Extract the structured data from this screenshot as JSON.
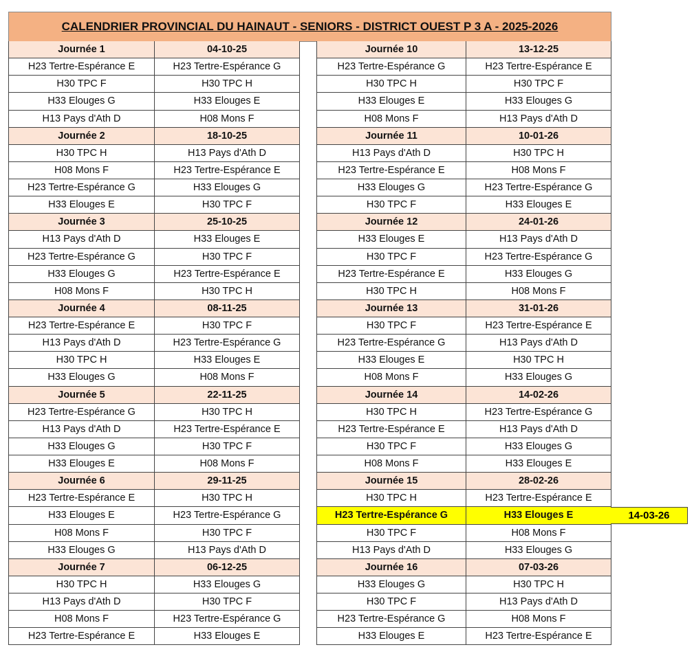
{
  "title": "CALENDRIER PROVINCIAL DU HAINAUT - SENIORS - DISTRICT OUEST P 3 A  - 2025-2026",
  "colors": {
    "title_bg": "#f4b183",
    "header_bg": "#fce4d6",
    "highlight": "#ffff00"
  },
  "left": [
    {
      "label": "Journée 1",
      "date": "04-10-25",
      "matches": [
        [
          "H23 Tertre-Espérance E",
          "H23 Tertre-Espérance G"
        ],
        [
          "H30 TPC F",
          "H30 TPC H"
        ],
        [
          "H33 Elouges G",
          "H33 Elouges E"
        ],
        [
          "H13 Pays d'Ath D",
          "H08 Mons F"
        ]
      ]
    },
    {
      "label": "Journée 2",
      "date": "18-10-25",
      "matches": [
        [
          "H30 TPC H",
          "H13 Pays d'Ath D"
        ],
        [
          "H08 Mons F",
          "H23 Tertre-Espérance E"
        ],
        [
          "H23 Tertre-Espérance G",
          "H33 Elouges G"
        ],
        [
          "H33 Elouges E",
          "H30 TPC F"
        ]
      ]
    },
    {
      "label": "Journée 3",
      "date": "25-10-25",
      "matches": [
        [
          "H13 Pays d'Ath D",
          "H33 Elouges E"
        ],
        [
          "H23 Tertre-Espérance G",
          "H30 TPC F"
        ],
        [
          "H33 Elouges G",
          "H23 Tertre-Espérance E"
        ],
        [
          "H08 Mons F",
          "H30 TPC H"
        ]
      ]
    },
    {
      "label": "Journée 4",
      "date": "08-11-25",
      "matches": [
        [
          "H23 Tertre-Espérance E",
          "H30 TPC F"
        ],
        [
          "H13 Pays d'Ath D",
          "H23 Tertre-Espérance G"
        ],
        [
          "H30 TPC H",
          "H33 Elouges E"
        ],
        [
          "H33 Elouges G",
          "H08 Mons F"
        ]
      ]
    },
    {
      "label": "Journée 5",
      "date": "22-11-25",
      "matches": [
        [
          "H23 Tertre-Espérance G",
          "H30 TPC H"
        ],
        [
          "H13 Pays d'Ath D",
          "H23 Tertre-Espérance E"
        ],
        [
          "H33 Elouges G",
          "H30 TPC F"
        ],
        [
          "H33 Elouges E",
          "H08 Mons F"
        ]
      ]
    },
    {
      "label": "Journée 6",
      "date": "29-11-25",
      "matches": [
        [
          "H23 Tertre-Espérance E",
          "H30 TPC H"
        ],
        [
          "H33 Elouges E",
          "H23 Tertre-Espérance G"
        ],
        [
          "H08 Mons F",
          "H30 TPC F"
        ],
        [
          "H33 Elouges G",
          "H13 Pays d'Ath D"
        ]
      ]
    },
    {
      "label": "Journée 7",
      "date": "06-12-25",
      "matches": [
        [
          "H30 TPC H",
          "H33 Elouges G"
        ],
        [
          "H13 Pays d'Ath D",
          "H30 TPC F"
        ],
        [
          "H08 Mons F",
          "H23 Tertre-Espérance G"
        ],
        [
          "H23 Tertre-Espérance E",
          "H33 Elouges E"
        ]
      ]
    }
  ],
  "right": [
    {
      "label": "Journée 10",
      "date": "13-12-25",
      "matches": [
        [
          "H23 Tertre-Espérance G",
          "H23 Tertre-Espérance E"
        ],
        [
          "H30 TPC H",
          "H30 TPC F"
        ],
        [
          "H33 Elouges E",
          "H33 Elouges G"
        ],
        [
          "H08 Mons F",
          "H13 Pays d'Ath D"
        ]
      ]
    },
    {
      "label": "Journée 11",
      "date": "10-01-26",
      "matches": [
        [
          "H13 Pays d'Ath D",
          "H30 TPC H"
        ],
        [
          "H23 Tertre-Espérance E",
          "H08 Mons F"
        ],
        [
          "H33 Elouges G",
          "H23 Tertre-Espérance G"
        ],
        [
          "H30 TPC F",
          "H33 Elouges E"
        ]
      ]
    },
    {
      "label": "Journée 12",
      "date": "24-01-26",
      "matches": [
        [
          "H33 Elouges E",
          "H13 Pays d'Ath D"
        ],
        [
          "H30 TPC F",
          "H23 Tertre-Espérance G"
        ],
        [
          "H23 Tertre-Espérance E",
          "H33 Elouges G"
        ],
        [
          "H30 TPC H",
          "H08 Mons F"
        ]
      ]
    },
    {
      "label": "Journée 13",
      "date": "31-01-26",
      "matches": [
        [
          "H30 TPC F",
          "H23 Tertre-Espérance E"
        ],
        [
          "H23 Tertre-Espérance G",
          "H13 Pays d'Ath D"
        ],
        [
          "H33 Elouges E",
          "H30 TPC H"
        ],
        [
          "H08 Mons F",
          "H33 Elouges G"
        ]
      ]
    },
    {
      "label": "Journée 14",
      "date": "14-02-26",
      "matches": [
        [
          "H30 TPC H",
          "H23 Tertre-Espérance G"
        ],
        [
          "H23 Tertre-Espérance E",
          "H13 Pays d'Ath D"
        ],
        [
          "H30 TPC F",
          "H33 Elouges G"
        ],
        [
          "H08 Mons F",
          "H33 Elouges E"
        ]
      ]
    },
    {
      "label": "Journée 15",
      "date": "28-02-26",
      "matches": [
        [
          "H30 TPC H",
          "H23 Tertre-Espérance E"
        ],
        [
          "H23 Tertre-Espérance G",
          "H33 Elouges E",
          "14-03-26"
        ],
        [
          "H30 TPC F",
          "H08 Mons F"
        ],
        [
          "H13 Pays d'Ath D",
          "H33 Elouges G"
        ]
      ]
    },
    {
      "label": "Journée 16",
      "date": "07-03-26",
      "matches": [
        [
          "H33 Elouges G",
          "H30 TPC H"
        ],
        [
          "H30 TPC F",
          "H13 Pays d'Ath D"
        ],
        [
          "H23 Tertre-Espérance G",
          "H08 Mons F"
        ],
        [
          "H33 Elouges E",
          "H23 Tertre-Espérance E"
        ]
      ]
    }
  ]
}
